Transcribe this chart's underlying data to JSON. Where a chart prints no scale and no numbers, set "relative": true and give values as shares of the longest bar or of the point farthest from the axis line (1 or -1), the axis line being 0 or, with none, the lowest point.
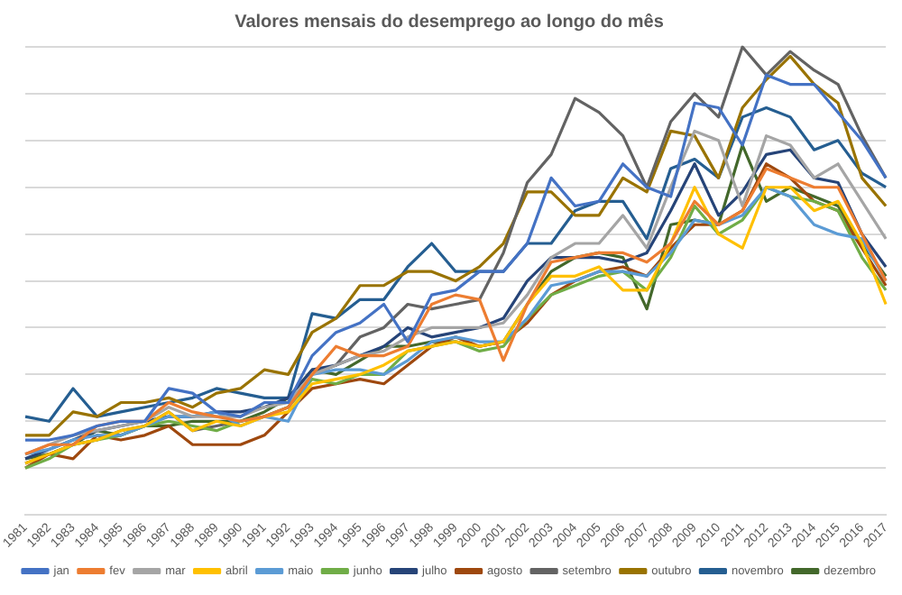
{
  "chart_data": {
    "type": "line",
    "title": "Valores mensais do desemprego ao longo do mês",
    "relative": true,
    "grid": "y",
    "legend": "bottom",
    "marker": "none",
    "line_style": "solid",
    "categories": [
      "1981",
      "1982",
      "1983",
      "1984",
      "1985",
      "1986",
      "1987",
      "1988",
      "1989",
      "1990",
      "1991",
      "1992",
      "1993",
      "1994",
      "1995",
      "1996",
      "1997",
      "1998",
      "1999",
      "2000",
      "2001",
      "2002",
      "2003",
      "2004",
      "2005",
      "2006",
      "2007",
      "2008",
      "2009",
      "2010",
      "2011",
      "2012",
      "2013",
      "2014",
      "2015",
      "2016",
      "2017"
    ],
    "series": [
      {
        "name": "jan",
        "color": "#4472c4",
        "values": [
          0.16,
          0.16,
          0.17,
          0.19,
          0.2,
          0.2,
          0.27,
          0.26,
          0.22,
          0.21,
          0.24,
          0.24,
          0.34,
          0.39,
          0.41,
          0.45,
          0.37,
          0.47,
          0.48,
          0.52,
          0.52,
          0.58,
          0.72,
          0.66,
          0.67,
          0.75,
          0.7,
          0.68,
          0.88,
          0.87,
          0.79,
          0.94,
          0.92,
          0.92,
          0.86,
          0.8,
          0.72
        ]
      },
      {
        "name": "fev",
        "color": "#ed7d31",
        "values": [
          0.13,
          0.15,
          0.15,
          0.19,
          0.2,
          0.2,
          0.24,
          0.22,
          0.21,
          0.2,
          0.21,
          0.23,
          0.3,
          0.36,
          0.34,
          0.34,
          0.36,
          0.45,
          0.47,
          0.46,
          0.33,
          0.45,
          0.54,
          0.55,
          0.56,
          0.56,
          0.54,
          0.58,
          0.67,
          0.62,
          0.65,
          0.74,
          0.72,
          0.7,
          0.7,
          0.6,
          0.5
        ]
      },
      {
        "name": "mar",
        "color": "#a5a5a5",
        "values": [
          0.13,
          0.15,
          0.17,
          0.18,
          0.19,
          0.2,
          0.23,
          0.21,
          0.21,
          0.21,
          0.23,
          0.24,
          0.3,
          0.32,
          0.34,
          0.35,
          0.38,
          0.4,
          0.4,
          0.4,
          0.41,
          0.47,
          0.55,
          0.58,
          0.58,
          0.64,
          0.57,
          0.7,
          0.82,
          0.8,
          0.66,
          0.81,
          0.79,
          0.72,
          0.75,
          0.67,
          0.59
        ]
      },
      {
        "name": "abril",
        "color": "#ffc000",
        "values": [
          0.11,
          0.13,
          0.15,
          0.16,
          0.18,
          0.19,
          0.22,
          0.18,
          0.2,
          0.19,
          0.21,
          0.22,
          0.28,
          0.29,
          0.3,
          0.32,
          0.35,
          0.36,
          0.37,
          0.36,
          0.37,
          0.45,
          0.51,
          0.51,
          0.53,
          0.48,
          0.48,
          0.58,
          0.7,
          0.6,
          0.57,
          0.7,
          0.7,
          0.65,
          0.67,
          0.58,
          0.45
        ]
      },
      {
        "name": "maio",
        "color": "#5b9bd5",
        "values": [
          0.13,
          0.14,
          0.16,
          0.17,
          0.17,
          0.19,
          0.21,
          0.21,
          0.22,
          0.19,
          0.21,
          0.2,
          0.3,
          0.31,
          0.31,
          0.3,
          0.33,
          0.37,
          0.38,
          0.37,
          0.37,
          0.42,
          0.49,
          0.5,
          0.52,
          0.52,
          0.51,
          0.56,
          0.63,
          0.62,
          0.64,
          0.7,
          0.68,
          0.62,
          0.6,
          0.59,
          0.5
        ]
      },
      {
        "name": "junho",
        "color": "#70ad47",
        "values": [
          0.1,
          0.12,
          0.15,
          0.16,
          0.17,
          0.19,
          0.2,
          0.19,
          0.18,
          0.2,
          0.21,
          0.23,
          0.29,
          0.28,
          0.3,
          0.3,
          0.35,
          0.36,
          0.37,
          0.35,
          0.36,
          0.42,
          0.47,
          0.49,
          0.51,
          0.52,
          0.48,
          0.55,
          0.66,
          0.6,
          0.63,
          0.7,
          0.68,
          0.67,
          0.65,
          0.55,
          0.48
        ]
      },
      {
        "name": "julho",
        "color": "#264478",
        "values": [
          0.12,
          0.14,
          0.16,
          0.18,
          0.19,
          0.2,
          0.21,
          0.21,
          0.22,
          0.22,
          0.23,
          0.25,
          0.31,
          0.32,
          0.34,
          0.36,
          0.4,
          0.38,
          0.39,
          0.4,
          0.42,
          0.5,
          0.55,
          0.55,
          0.55,
          0.54,
          0.56,
          0.65,
          0.75,
          0.64,
          0.69,
          0.77,
          0.78,
          0.72,
          0.71,
          0.6,
          0.53
        ]
      },
      {
        "name": "agosto",
        "color": "#9e480e",
        "values": [
          0.1,
          0.13,
          0.12,
          0.17,
          0.16,
          0.17,
          0.19,
          0.15,
          0.15,
          0.15,
          0.17,
          0.22,
          0.27,
          0.28,
          0.29,
          0.28,
          0.32,
          0.36,
          0.38,
          0.36,
          0.37,
          0.41,
          0.47,
          0.5,
          0.52,
          0.53,
          0.51,
          0.57,
          0.62,
          0.62,
          0.65,
          0.75,
          0.72,
          0.67,
          0.65,
          0.57,
          0.49
        ]
      },
      {
        "name": "setembro",
        "color": "#636363",
        "values": [
          0.11,
          0.13,
          0.15,
          0.16,
          0.18,
          0.19,
          0.22,
          0.18,
          0.19,
          0.2,
          0.21,
          0.23,
          0.3,
          0.32,
          0.38,
          0.4,
          0.45,
          0.44,
          0.45,
          0.46,
          0.56,
          0.71,
          0.77,
          0.89,
          0.86,
          0.81,
          0.7,
          0.84,
          0.9,
          0.85,
          1.0,
          0.94,
          0.99,
          0.95,
          0.92,
          0.81,
          0.72
        ]
      },
      {
        "name": "outubro",
        "color": "#997300",
        "values": [
          0.17,
          0.17,
          0.22,
          0.21,
          0.24,
          0.24,
          0.25,
          0.23,
          0.26,
          0.27,
          0.31,
          0.3,
          0.39,
          0.42,
          0.49,
          0.49,
          0.52,
          0.52,
          0.5,
          0.53,
          0.58,
          0.69,
          0.69,
          0.64,
          0.64,
          0.72,
          0.69,
          0.82,
          0.81,
          0.72,
          0.87,
          0.93,
          0.98,
          0.92,
          0.88,
          0.72,
          0.66
        ]
      },
      {
        "name": "novembro",
        "color": "#255e91",
        "values": [
          0.21,
          0.2,
          0.27,
          0.21,
          0.22,
          0.23,
          0.24,
          0.25,
          0.27,
          0.26,
          0.25,
          0.25,
          0.43,
          0.42,
          0.46,
          0.46,
          0.53,
          0.58,
          0.52,
          0.52,
          0.52,
          0.58,
          0.58,
          0.65,
          0.67,
          0.67,
          0.59,
          0.74,
          0.76,
          0.72,
          0.85,
          0.87,
          0.85,
          0.78,
          0.8,
          0.73,
          0.7
        ]
      },
      {
        "name": "dezembro",
        "color": "#43682b",
        "values": [
          0.12,
          0.13,
          0.15,
          0.18,
          0.17,
          0.19,
          0.19,
          0.2,
          0.2,
          0.2,
          0.22,
          0.25,
          0.31,
          0.3,
          0.33,
          0.36,
          0.36,
          0.37,
          0.37,
          0.36,
          0.37,
          0.45,
          0.52,
          0.55,
          0.56,
          0.55,
          0.44,
          0.62,
          0.63,
          0.62,
          0.79,
          0.67,
          0.7,
          0.68,
          0.66,
          0.58,
          0.51
        ]
      }
    ]
  }
}
